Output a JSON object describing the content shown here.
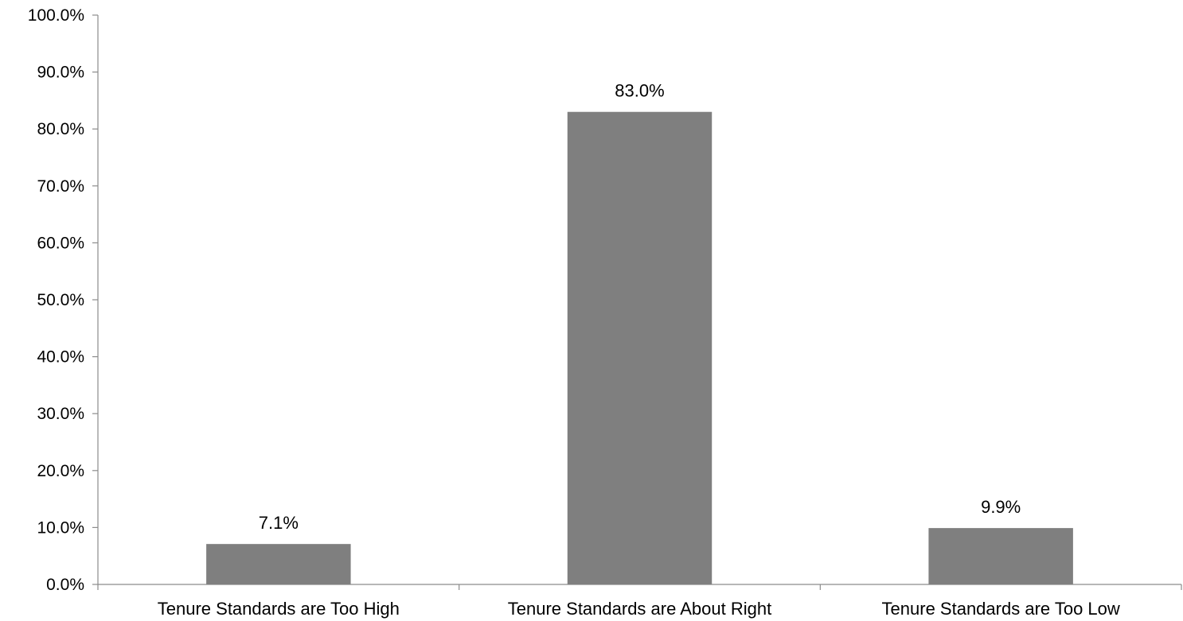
{
  "chart_data": {
    "type": "bar",
    "categories": [
      "Tenure Standards are Too High",
      "Tenure Standards are About Right",
      "Tenure Standards are Too Low"
    ],
    "values": [
      7.1,
      83.0,
      9.9
    ],
    "data_labels": [
      "7.1%",
      "83.0%",
      "9.9%"
    ],
    "ylim": [
      0,
      100
    ],
    "yticks": [
      0,
      10,
      20,
      30,
      40,
      50,
      60,
      70,
      80,
      90,
      100
    ],
    "ytick_labels": [
      "0.0%",
      "10.0%",
      "20.0%",
      "30.0%",
      "40.0%",
      "50.0%",
      "60.0%",
      "70.0%",
      "80.0%",
      "90.0%",
      "100.0%"
    ],
    "title": "",
    "xlabel": "",
    "ylabel": "",
    "grid": false,
    "legend": "none",
    "bar_color": "#7f7f7f",
    "axis_color": "#8c8c8c"
  }
}
